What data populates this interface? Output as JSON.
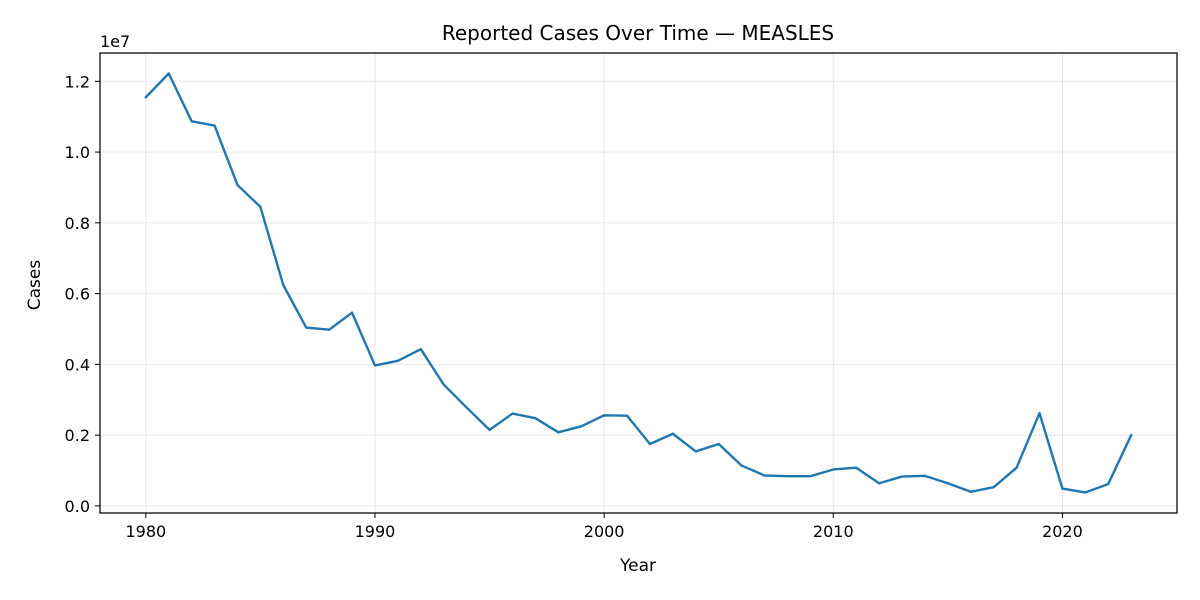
{
  "chart_data": {
    "type": "line",
    "title": "Reported Cases Over Time — MEASLES",
    "xlabel": "Year",
    "ylabel": "Cases",
    "y_multiplier_label": "1e7",
    "xlim": [
      1978,
      2025
    ],
    "ylim": [
      -200000,
      12800000
    ],
    "x_ticks": [
      1980,
      1990,
      2000,
      2010,
      2020
    ],
    "x_tick_labels": [
      "1980",
      "1990",
      "2000",
      "2010",
      "2020"
    ],
    "y_ticks": [
      0,
      2000000,
      4000000,
      6000000,
      8000000,
      10000000,
      12000000
    ],
    "y_tick_labels": [
      "0.0",
      "0.2",
      "0.4",
      "0.6",
      "0.8",
      "1.0",
      "1.2"
    ],
    "grid": true,
    "color": "#1f77b4",
    "x": [
      1980,
      1981,
      1982,
      1983,
      1984,
      1985,
      1986,
      1987,
      1988,
      1989,
      1990,
      1991,
      1992,
      1993,
      1994,
      1995,
      1996,
      1997,
      1998,
      1999,
      2000,
      2001,
      2002,
      2003,
      2004,
      2005,
      2006,
      2007,
      2008,
      2009,
      2010,
      2011,
      2012,
      2013,
      2014,
      2015,
      2016,
      2017,
      2018,
      2019,
      2020,
      2021,
      2022,
      2023
    ],
    "y": [
      11550000,
      12220000,
      10870000,
      10750000,
      9070000,
      8450000,
      6240000,
      5040000,
      4980000,
      5460000,
      3970000,
      4100000,
      4430000,
      3430000,
      2780000,
      2150000,
      2610000,
      2480000,
      2080000,
      2250000,
      2560000,
      2550000,
      1750000,
      2040000,
      1540000,
      1750000,
      1140000,
      860000,
      840000,
      840000,
      1030000,
      1080000,
      640000,
      830000,
      850000,
      640000,
      400000,
      530000,
      1080000,
      2620000,
      490000,
      380000,
      620000,
      2000000
    ]
  }
}
